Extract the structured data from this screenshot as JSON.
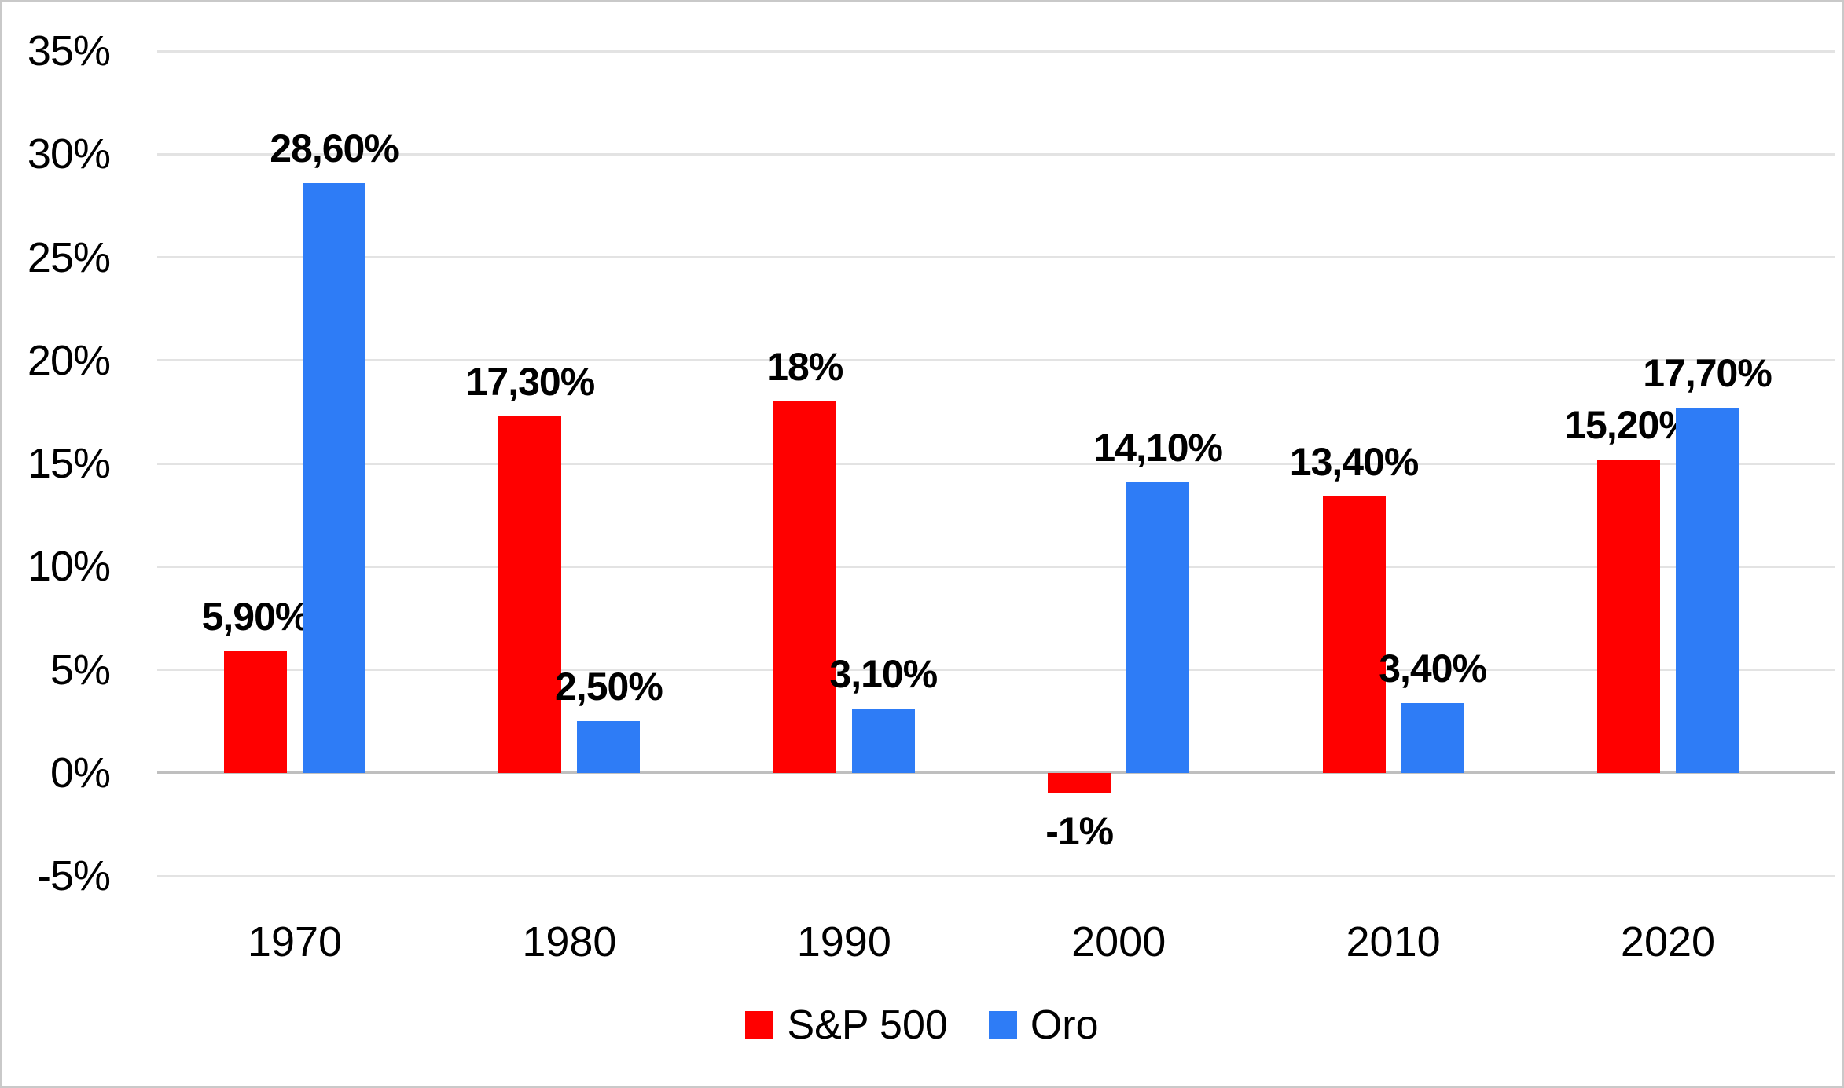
{
  "chart_data": {
    "type": "bar",
    "title": "",
    "categories": [
      "1970",
      "1980",
      "1990",
      "2000",
      "2010",
      "2020"
    ],
    "series": [
      {
        "name": "S&P 500",
        "color": "#ff0000",
        "values": [
          5.9,
          17.3,
          18,
          -1,
          13.4,
          15.2
        ],
        "labels": [
          "5,90%",
          "17,30%",
          "18%",
          "-1%",
          "13,40%",
          "15,20%"
        ]
      },
      {
        "name": "Oro",
        "color": "#2e7cf6",
        "values": [
          28.6,
          2.5,
          3.1,
          14.1,
          3.4,
          17.7
        ],
        "labels": [
          "28,60%",
          "2,50%",
          "3,10%",
          "14,10%",
          "3,40%",
          "17,70%"
        ]
      }
    ],
    "y_axis": {
      "tick_labels": [
        "35%",
        "30%",
        "25%",
        "20%",
        "15%",
        "10%",
        "5%",
        "0%",
        "-5%"
      ],
      "tick_values": [
        35,
        30,
        25,
        20,
        15,
        10,
        5,
        0,
        -5
      ],
      "min": -5,
      "max": 35,
      "step": 5
    },
    "grid": true,
    "legend_position": "bottom",
    "colors": {
      "gridline": "#e3e3e3",
      "zero_line": "#bfbfbf",
      "border": "#c9c9c9",
      "text": "#000000",
      "background": "#ffffff"
    }
  }
}
